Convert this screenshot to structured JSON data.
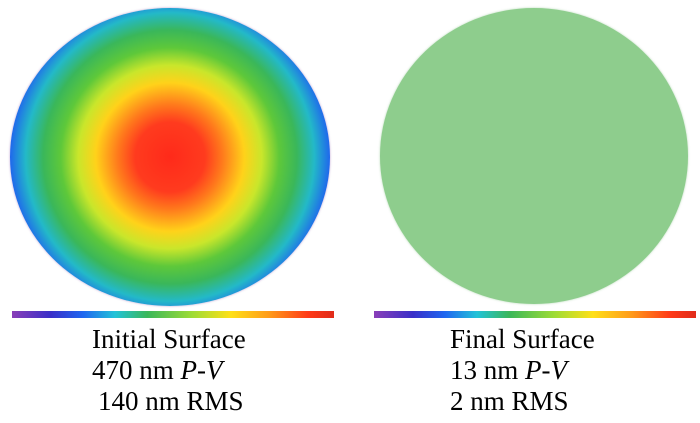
{
  "panels": [
    {
      "title": "Initial Surface",
      "pv_value": "470 nm",
      "pv_unit": "P-V",
      "rms": "140 nm RMS",
      "colors": {
        "center": "#ff2a1a",
        "edge": "#b65cbf"
      }
    },
    {
      "title": "Final Surface",
      "pv_value": "13 nm",
      "pv_unit": "P-V",
      "rms": "2 nm RMS",
      "colors": {
        "fill": "#8ecd8d"
      }
    }
  ],
  "colorbar": {
    "colors": [
      "#8a3fb8",
      "#3a2fc8",
      "#1f66f0",
      "#22c3d8",
      "#3ab75a",
      "#9edc35",
      "#ffe018",
      "#ff9a1a",
      "#ff3a18",
      "#e02b1a"
    ]
  }
}
